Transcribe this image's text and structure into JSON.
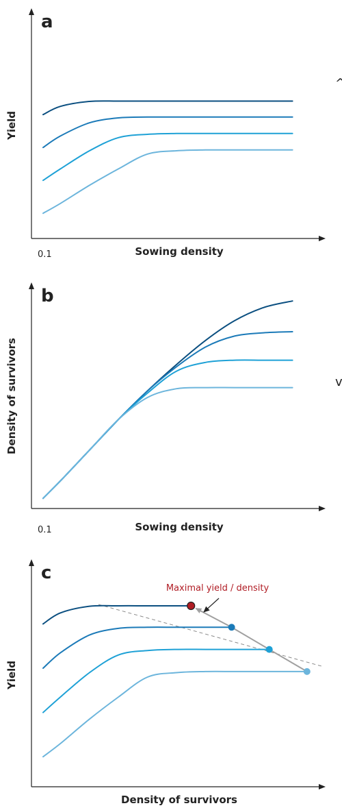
{
  "colors": {
    "series": [
      "#0b4f80",
      "#1b7ab8",
      "#1ea1d6",
      "#6cb5dc"
    ],
    "axis": "#222222",
    "annotation": "#b01c24",
    "path": "#a0a0a0",
    "dashed": "#8a8a8a"
  },
  "edge_marks": [
    "^",
    "v"
  ],
  "chart_data": [
    {
      "type": "line",
      "panel_label": "a",
      "xlabel": "Sowing density",
      "ylabel": "Yield",
      "x_tick_label": "0.1",
      "xlim": [
        0,
        10
      ],
      "ylim": [
        0,
        10
      ],
      "series": [
        {
          "color": "#0b4f80",
          "x": [
            0.4,
            1.0,
            2.0,
            3.0,
            4.0,
            5.0,
            6.0,
            7.0,
            8.0,
            9.0
          ],
          "y": [
            7.2,
            7.7,
            8.0,
            8.02,
            8.02,
            8.02,
            8.02,
            8.02,
            8.02,
            8.02
          ]
        },
        {
          "color": "#1b7ab8",
          "x": [
            0.4,
            1.0,
            2.0,
            3.0,
            4.0,
            5.0,
            6.0,
            7.0,
            8.0,
            9.0
          ],
          "y": [
            5.2,
            5.9,
            6.7,
            7.0,
            7.05,
            7.05,
            7.05,
            7.05,
            7.05,
            7.05
          ]
        },
        {
          "color": "#1ea1d6",
          "x": [
            0.4,
            1.0,
            2.0,
            3.0,
            4.0,
            5.0,
            6.0,
            7.0,
            8.0,
            9.0
          ],
          "y": [
            3.2,
            3.9,
            5.0,
            5.8,
            6.0,
            6.05,
            6.05,
            6.05,
            6.05,
            6.05
          ]
        },
        {
          "color": "#6cb5dc",
          "x": [
            0.4,
            1.0,
            2.0,
            3.0,
            4.0,
            5.0,
            6.0,
            7.0,
            8.0,
            9.0
          ],
          "y": [
            1.2,
            1.8,
            2.9,
            3.9,
            4.8,
            5.0,
            5.05,
            5.05,
            5.05,
            5.05
          ]
        }
      ]
    },
    {
      "type": "line",
      "panel_label": "b",
      "xlabel": "Sowing density",
      "ylabel": "Density of survivors",
      "x_tick_label": "0.1",
      "xlim": [
        0,
        10
      ],
      "ylim": [
        0,
        10
      ],
      "series": [
        {
          "color": "#0b4f80",
          "x": [
            0.4,
            1.0,
            2.0,
            3.0,
            4.0,
            5.0,
            6.0,
            7.0,
            8.0,
            9.0
          ],
          "y": [
            0.4,
            1.2,
            2.6,
            4.0,
            5.3,
            6.5,
            7.6,
            8.5,
            9.1,
            9.4
          ]
        },
        {
          "color": "#1b7ab8",
          "x": [
            0.4,
            1.0,
            2.0,
            3.0,
            4.0,
            5.0,
            6.0,
            7.0,
            8.0,
            9.0
          ],
          "y": [
            0.4,
            1.2,
            2.6,
            4.0,
            5.3,
            6.4,
            7.3,
            7.8,
            7.95,
            8.0
          ]
        },
        {
          "color": "#1ea1d6",
          "x": [
            0.4,
            1.0,
            2.0,
            3.0,
            4.0,
            5.0,
            6.0,
            7.0,
            8.0,
            9.0
          ],
          "y": [
            0.4,
            1.2,
            2.6,
            4.0,
            5.2,
            6.2,
            6.6,
            6.7,
            6.7,
            6.7
          ]
        },
        {
          "color": "#6cb5dc",
          "x": [
            0.4,
            1.0,
            2.0,
            3.0,
            4.0,
            5.0,
            6.0,
            7.0,
            8.0,
            9.0
          ],
          "y": [
            0.4,
            1.2,
            2.6,
            4.0,
            5.0,
            5.4,
            5.45,
            5.45,
            5.45,
            5.45
          ]
        }
      ]
    },
    {
      "type": "line",
      "panel_label": "c",
      "xlabel": "Density of survivors",
      "ylabel": "Yield",
      "xlim": [
        0,
        10
      ],
      "ylim": [
        0,
        10
      ],
      "series": [
        {
          "color": "#0b4f80",
          "x": [
            0.4,
            1.0,
            2.0,
            3.0,
            4.0,
            5.0,
            5.5
          ],
          "y": [
            7.2,
            7.7,
            8.0,
            8.02,
            8.02,
            8.02,
            8.02
          ]
        },
        {
          "color": "#1b7ab8",
          "x": [
            0.4,
            1.0,
            2.0,
            3.0,
            4.0,
            5.0,
            6.0,
            6.9
          ],
          "y": [
            5.2,
            5.9,
            6.7,
            7.0,
            7.05,
            7.05,
            7.05,
            7.05
          ]
        },
        {
          "color": "#1ea1d6",
          "x": [
            0.4,
            1.0,
            2.0,
            3.0,
            4.0,
            5.0,
            6.0,
            7.0,
            8.0,
            8.2
          ],
          "y": [
            3.2,
            3.9,
            5.0,
            5.8,
            6.0,
            6.05,
            6.05,
            6.05,
            6.05,
            6.05
          ]
        },
        {
          "color": "#6cb5dc",
          "x": [
            0.4,
            1.0,
            2.0,
            3.0,
            4.0,
            5.0,
            6.0,
            7.0,
            8.0,
            9.0,
            9.5
          ],
          "y": [
            1.2,
            1.8,
            2.9,
            3.9,
            4.8,
            5.0,
            5.05,
            5.05,
            5.05,
            5.05,
            5.05
          ]
        }
      ],
      "endpoints": [
        {
          "x": 5.5,
          "y": 8.02,
          "color": "#b01c24"
        },
        {
          "x": 6.9,
          "y": 7.05,
          "color": "#1b7ab8"
        },
        {
          "x": 8.2,
          "y": 6.05,
          "color": "#1ea1d6"
        },
        {
          "x": 9.5,
          "y": 5.05,
          "color": "#6cb5dc"
        }
      ],
      "annotation": {
        "text": "Maximal yield / density",
        "color": "#b01c24"
      }
    }
  ]
}
